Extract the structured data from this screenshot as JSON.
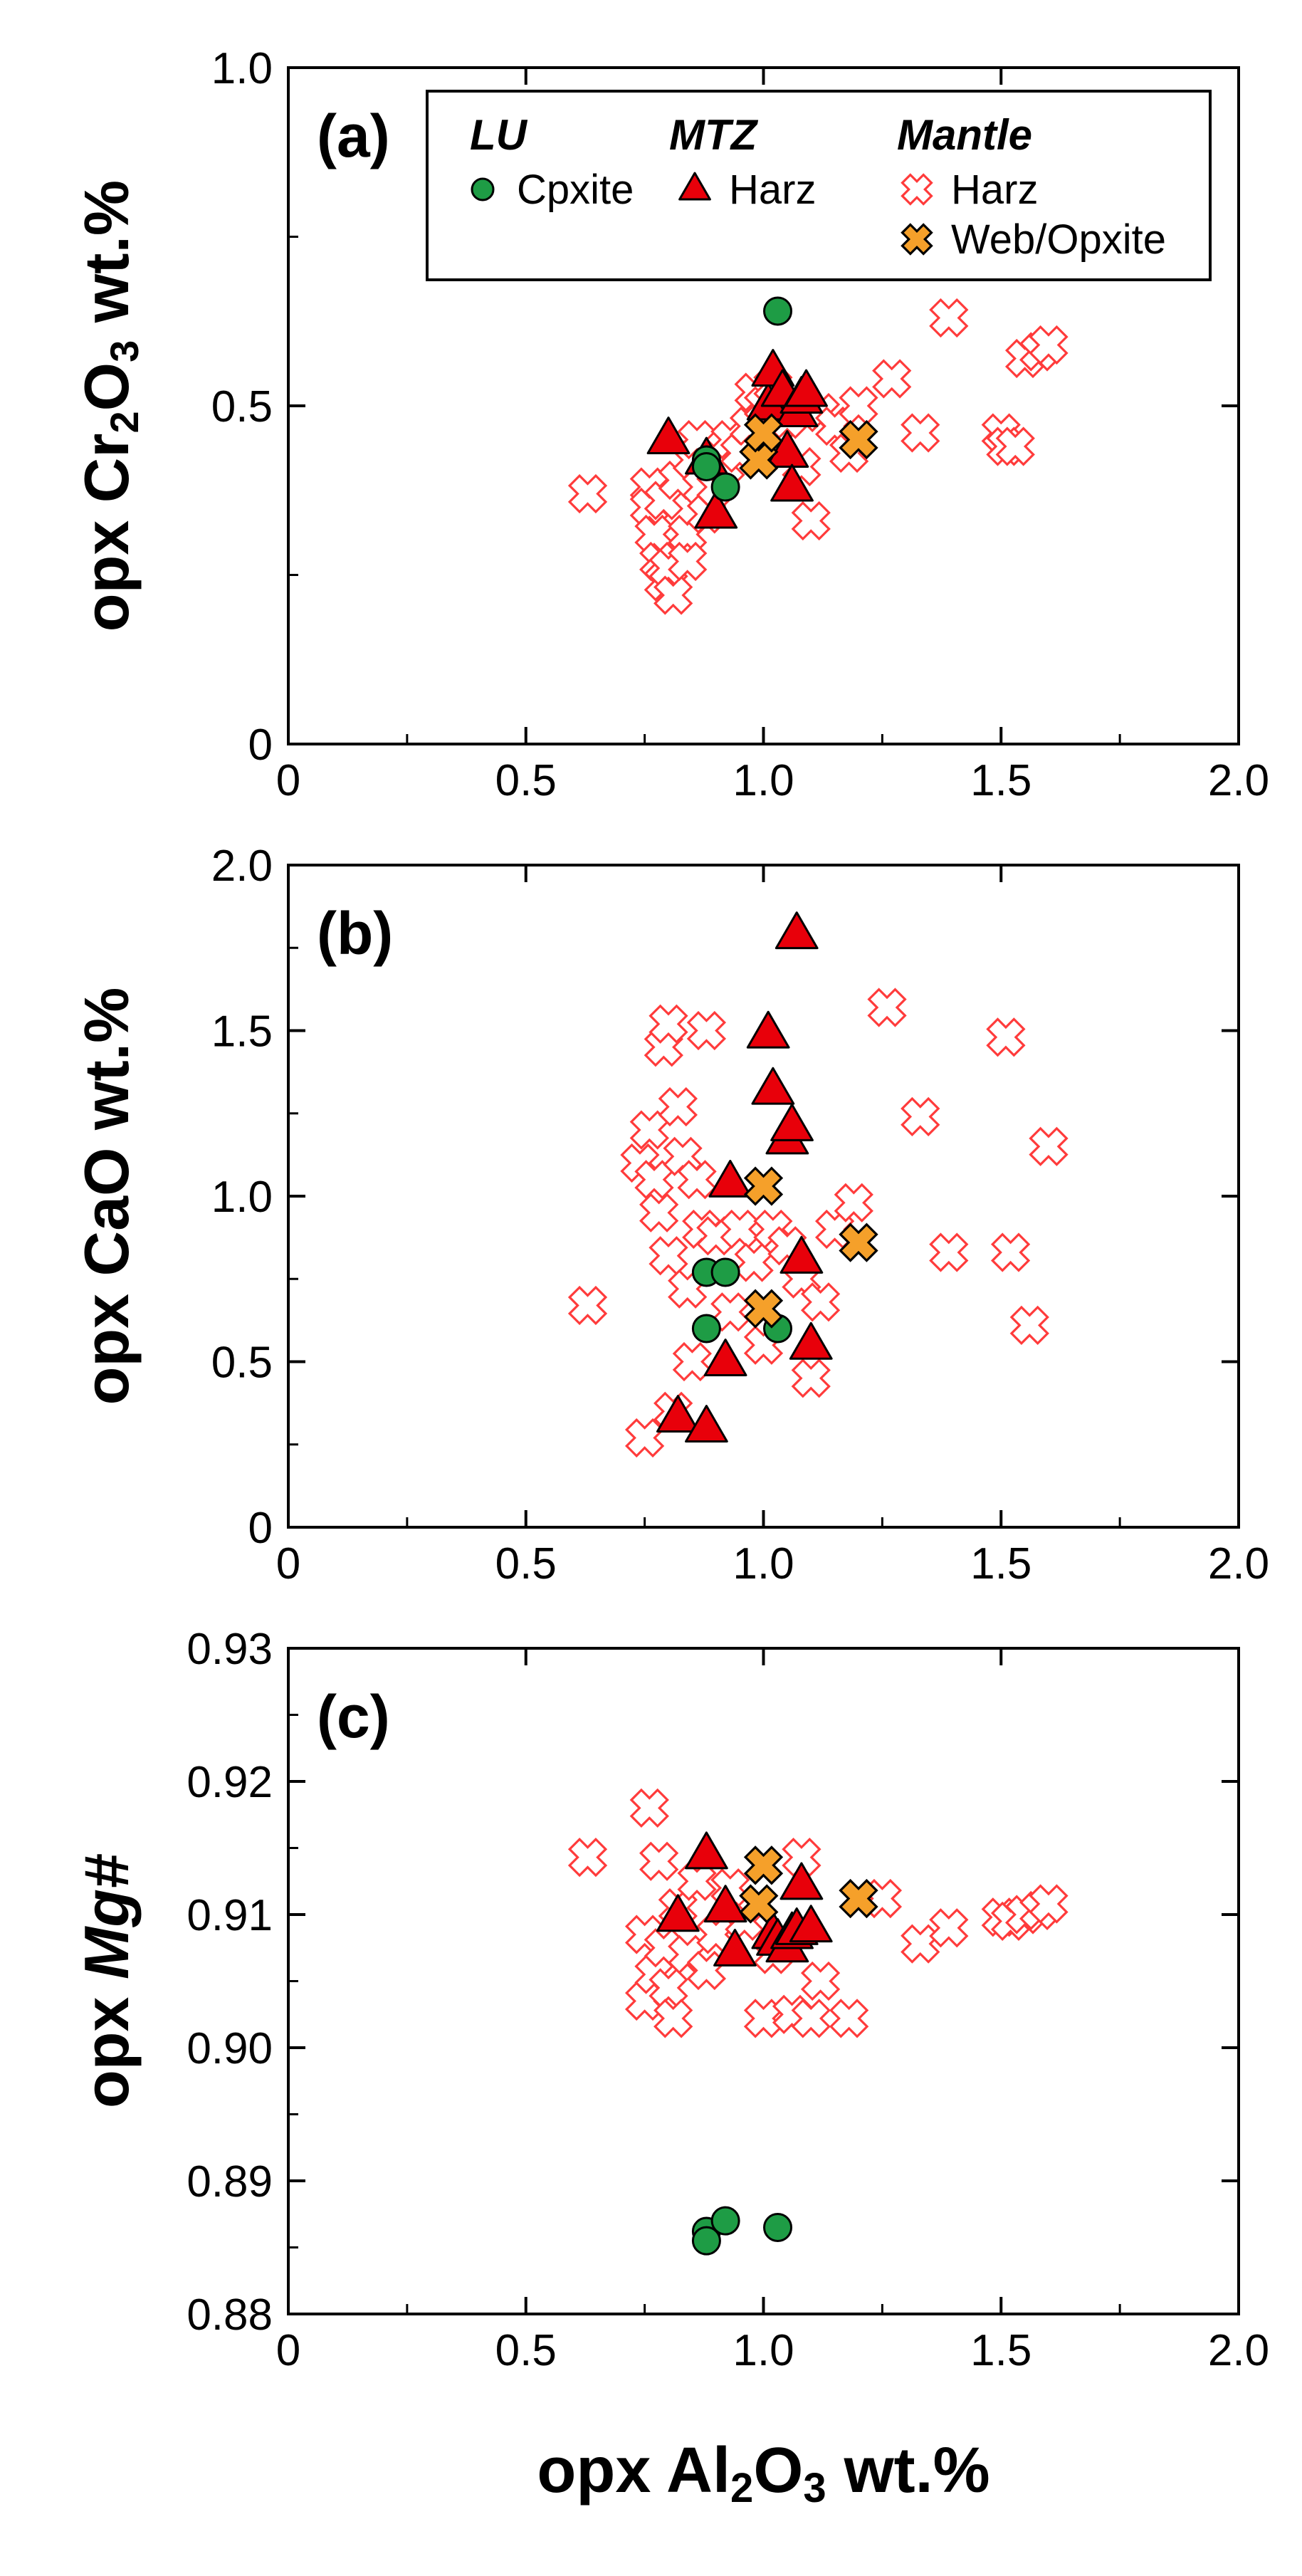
{
  "legend": {
    "groups": [
      {
        "title": "LU",
        "entries": [
          {
            "label": "Cpxite",
            "marker": "circle"
          }
        ]
      },
      {
        "title": "MTZ",
        "entries": [
          {
            "label": "Harz",
            "marker": "triangle"
          }
        ]
      },
      {
        "title": "Mantle",
        "entries": [
          {
            "label": "Harz",
            "marker": "xopen"
          },
          {
            "label": "Web/Opxite",
            "marker": "xfilled"
          }
        ]
      }
    ]
  },
  "colors": {
    "lu": "#1e9c45",
    "mtz": "#e8000a",
    "mantle_open": "#ff3b3b",
    "mantle_filled": "#f5a02a",
    "axis": "#000000"
  },
  "chart_data": [
    {
      "type": "scatter",
      "panel_label": "(a)",
      "ylabel": "opx Cr₂O₃ wt.%",
      "ylabel_main": "opx Cr",
      "ylabel_sub": "2",
      "ylabel_tail": "O",
      "ylabel_sub2": "3",
      "ylabel_end": " wt.%",
      "xlim": [
        0,
        2.0
      ],
      "ylim": [
        0,
        1.0
      ],
      "xticks": [
        0,
        0.5,
        1.0,
        1.5,
        2.0
      ],
      "xtick_labels": [
        "0",
        "0.5",
        "1.0",
        "1.5",
        "2.0"
      ],
      "yticks": [
        0,
        0.5,
        1.0
      ],
      "ytick_labels": [
        "0",
        "0.5",
        "1.0"
      ],
      "legend_in_panel": true,
      "series": [
        {
          "name": "Mantle Harz",
          "marker": "xopen",
          "points": [
            [
              0.63,
              0.37
            ],
            [
              0.76,
              0.38
            ],
            [
              0.76,
              0.35
            ],
            [
              0.77,
              0.31
            ],
            [
              0.78,
              0.27
            ],
            [
              0.79,
              0.36
            ],
            [
              0.79,
              0.24
            ],
            [
              0.8,
              0.26
            ],
            [
              0.81,
              0.22
            ],
            [
              0.82,
              0.39
            ],
            [
              0.84,
              0.31
            ],
            [
              0.84,
              0.27
            ],
            [
              0.85,
              0.42
            ],
            [
              0.86,
              0.45
            ],
            [
              0.87,
              0.38
            ],
            [
              0.88,
              0.34
            ],
            [
              0.9,
              0.38
            ],
            [
              0.92,
              0.41
            ],
            [
              0.93,
              0.45
            ],
            [
              0.95,
              0.43
            ],
            [
              0.97,
              0.47
            ],
            [
              0.98,
              0.52
            ],
            [
              1.0,
              0.5
            ],
            [
              1.02,
              0.53
            ],
            [
              1.03,
              0.45
            ],
            [
              1.05,
              0.48
            ],
            [
              1.08,
              0.41
            ],
            [
              1.1,
              0.33
            ],
            [
              1.12,
              0.49
            ],
            [
              1.15,
              0.47
            ],
            [
              1.18,
              0.43
            ],
            [
              1.2,
              0.5
            ],
            [
              1.27,
              0.54
            ],
            [
              1.33,
              0.46
            ],
            [
              1.39,
              0.63
            ],
            [
              1.5,
              0.46
            ],
            [
              1.51,
              0.44
            ],
            [
              1.53,
              0.44
            ],
            [
              1.55,
              0.57
            ],
            [
              1.58,
              0.58
            ],
            [
              1.6,
              0.59
            ]
          ]
        },
        {
          "name": "MTZ Harz",
          "marker": "triangle",
          "points": [
            [
              0.8,
              0.45
            ],
            [
              0.88,
              0.42
            ],
            [
              0.9,
              0.34
            ],
            [
              1.01,
              0.5
            ],
            [
              1.02,
              0.55
            ],
            [
              1.04,
              0.52
            ],
            [
              1.05,
              0.43
            ],
            [
              1.06,
              0.38
            ],
            [
              1.07,
              0.49
            ],
            [
              1.08,
              0.51
            ],
            [
              1.09,
              0.52
            ]
          ]
        },
        {
          "name": "LU Cpxite",
          "marker": "circle",
          "points": [
            [
              0.88,
              0.42
            ],
            [
              0.88,
              0.41
            ],
            [
              0.92,
              0.38
            ],
            [
              1.03,
              0.64
            ]
          ]
        },
        {
          "name": "Mantle Web/Opxite",
          "marker": "xfilled",
          "points": [
            [
              0.99,
              0.42
            ],
            [
              1.0,
              0.46
            ],
            [
              1.2,
              0.45
            ]
          ]
        }
      ]
    },
    {
      "type": "scatter",
      "panel_label": "(b)",
      "ylabel": "opx CaO wt.%",
      "xlim": [
        0,
        2.0
      ],
      "ylim": [
        0,
        2.0
      ],
      "xticks": [
        0,
        0.5,
        1.0,
        1.5,
        2.0
      ],
      "xtick_labels": [
        "0",
        "0.5",
        "1.0",
        "1.5",
        "2.0"
      ],
      "yticks": [
        0,
        0.5,
        1.0,
        1.5,
        2.0
      ],
      "ytick_labels": [
        "0",
        "0.5",
        "1.0",
        "1.5",
        "2.0"
      ],
      "legend_in_panel": false,
      "series": [
        {
          "name": "Mantle Harz",
          "marker": "xopen",
          "points": [
            [
              0.63,
              0.67
            ],
            [
              0.74,
              1.1
            ],
            [
              0.75,
              0.27
            ],
            [
              0.76,
              1.2
            ],
            [
              0.77,
              1.05
            ],
            [
              0.78,
              0.95
            ],
            [
              0.79,
              1.45
            ],
            [
              0.8,
              1.52
            ],
            [
              0.8,
              0.82
            ],
            [
              0.81,
              0.35
            ],
            [
              0.82,
              1.27
            ],
            [
              0.83,
              1.12
            ],
            [
              0.84,
              0.72
            ],
            [
              0.85,
              0.5
            ],
            [
              0.86,
              1.05
            ],
            [
              0.87,
              0.9
            ],
            [
              0.88,
              1.5
            ],
            [
              0.9,
              0.88
            ],
            [
              0.93,
              0.65
            ],
            [
              0.95,
              0.9
            ],
            [
              0.98,
              0.8
            ],
            [
              1.0,
              0.55
            ],
            [
              1.02,
              0.9
            ],
            [
              1.05,
              0.85
            ],
            [
              1.08,
              0.75
            ],
            [
              1.1,
              0.45
            ],
            [
              1.12,
              0.68
            ],
            [
              1.15,
              0.9
            ],
            [
              1.19,
              0.98
            ],
            [
              1.26,
              1.57
            ],
            [
              1.33,
              1.24
            ],
            [
              1.39,
              0.83
            ],
            [
              1.51,
              1.48
            ],
            [
              1.52,
              0.83
            ],
            [
              1.56,
              0.61
            ],
            [
              1.6,
              1.15
            ]
          ]
        },
        {
          "name": "MTZ Harz",
          "marker": "triangle",
          "points": [
            [
              0.82,
              0.33
            ],
            [
              0.88,
              0.3
            ],
            [
              0.92,
              0.5
            ],
            [
              0.93,
              1.04
            ],
            [
              1.01,
              1.49
            ],
            [
              1.02,
              1.32
            ],
            [
              1.05,
              1.17
            ],
            [
              1.06,
              1.21
            ],
            [
              1.07,
              1.79
            ],
            [
              1.08,
              0.81
            ],
            [
              1.1,
              0.55
            ]
          ]
        },
        {
          "name": "LU Cpxite",
          "marker": "circle",
          "points": [
            [
              0.88,
              0.77
            ],
            [
              0.88,
              0.6
            ],
            [
              0.92,
              0.77
            ],
            [
              1.03,
              0.6
            ]
          ]
        },
        {
          "name": "Mantle Web/Opxite",
          "marker": "xfilled",
          "points": [
            [
              1.0,
              1.03
            ],
            [
              1.0,
              0.66
            ],
            [
              1.2,
              0.86
            ]
          ]
        }
      ]
    },
    {
      "type": "scatter",
      "panel_label": "(c)",
      "ylabel": "opx Mg#",
      "ylabel_prefix": "opx ",
      "ylabel_italic": "Mg#",
      "xlabel": "opx Al₂O₃ wt.%",
      "xlabel_main": "opx Al",
      "xlabel_sub": "2",
      "xlabel_tail": "O",
      "xlabel_sub2": "3",
      "xlabel_end": " wt.%",
      "xlim": [
        0,
        2.0
      ],
      "ylim": [
        0.88,
        0.93
      ],
      "xticks": [
        0,
        0.5,
        1.0,
        1.5,
        2.0
      ],
      "xtick_labels": [
        "0",
        "0.5",
        "1.0",
        "1.5",
        "2.0"
      ],
      "yticks": [
        0.88,
        0.89,
        0.9,
        0.91,
        0.92,
        0.93
      ],
      "ytick_labels": [
        "0.88",
        "0.89",
        "0.90",
        "0.91",
        "0.92",
        "0.93"
      ],
      "legend_in_panel": false,
      "series": [
        {
          "name": "Mantle Harz",
          "marker": "xopen",
          "points": [
            [
              0.63,
              0.9143
            ],
            [
              0.75,
              0.9085
            ],
            [
              0.75,
              0.9035
            ],
            [
              0.76,
              0.918
            ],
            [
              0.77,
              0.9055
            ],
            [
              0.78,
              0.914
            ],
            [
              0.79,
              0.9075
            ],
            [
              0.8,
              0.9045
            ],
            [
              0.81,
              0.9022
            ],
            [
              0.82,
              0.9105
            ],
            [
              0.84,
              0.907
            ],
            [
              0.86,
              0.9125
            ],
            [
              0.88,
              0.9058
            ],
            [
              0.9,
              0.9085
            ],
            [
              0.93,
              0.912
            ],
            [
              0.96,
              0.9095
            ],
            [
              1.0,
              0.9022
            ],
            [
              1.02,
              0.907
            ],
            [
              1.06,
              0.9025
            ],
            [
              1.08,
              0.9143
            ],
            [
              1.1,
              0.9022
            ],
            [
              1.12,
              0.905
            ],
            [
              1.18,
              0.9022
            ],
            [
              1.25,
              0.9112
            ],
            [
              1.33,
              0.9078
            ],
            [
              1.39,
              0.909
            ],
            [
              1.5,
              0.9098
            ],
            [
              1.52,
              0.9095
            ],
            [
              1.55,
              0.91
            ],
            [
              1.58,
              0.9103
            ],
            [
              1.6,
              0.9108
            ]
          ]
        },
        {
          "name": "MTZ Harz",
          "marker": "triangle",
          "points": [
            [
              0.82,
              0.9098
            ],
            [
              0.88,
              0.9145
            ],
            [
              0.92,
              0.9105
            ],
            [
              0.94,
              0.9072
            ],
            [
              1.02,
              0.9085
            ],
            [
              1.03,
              0.908
            ],
            [
              1.05,
              0.9075
            ],
            [
              1.06,
              0.9085
            ],
            [
              1.07,
              0.9088
            ],
            [
              1.08,
              0.9122
            ],
            [
              1.1,
              0.909
            ]
          ]
        },
        {
          "name": "LU Cpxite",
          "marker": "circle",
          "points": [
            [
              0.88,
              0.8862
            ],
            [
              0.88,
              0.8855
            ],
            [
              0.92,
              0.887
            ],
            [
              1.03,
              0.8865
            ]
          ]
        },
        {
          "name": "Mantle Web/Opxite",
          "marker": "xfilled",
          "points": [
            [
              0.99,
              0.9108
            ],
            [
              1.0,
              0.9137
            ],
            [
              1.2,
              0.9112
            ]
          ]
        }
      ]
    }
  ]
}
